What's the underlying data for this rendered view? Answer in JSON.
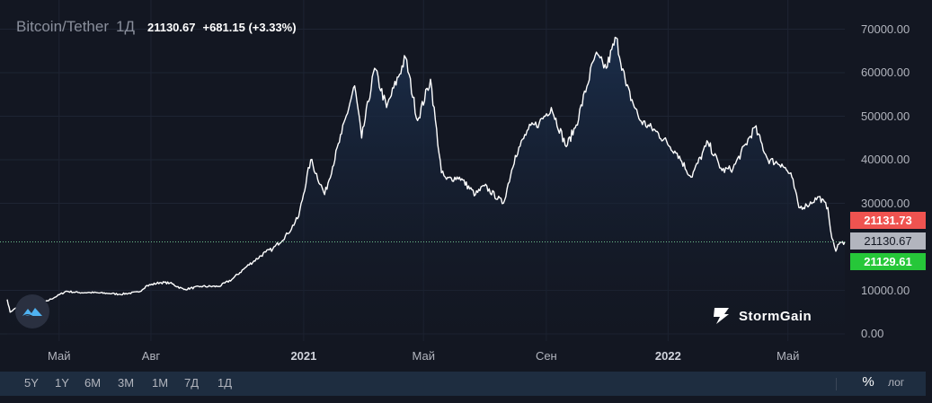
{
  "header": {
    "symbol": "Bitcoin/Tether",
    "interval": "1Д",
    "price": "21130.67",
    "change": "+681.15 (+3.33%)"
  },
  "price_boxes": {
    "ask": "21131.73",
    "last": "21130.67",
    "bid": "21129.61"
  },
  "toolbar": {
    "timeframes": [
      "5Y",
      "1Y",
      "6M",
      "3M",
      "1M",
      "7Д",
      "1Д"
    ],
    "percent_label": "%",
    "log_label": "лог"
  },
  "brand": {
    "name": "StormGain"
  },
  "colors": {
    "background": "#131722",
    "line": "#ffffff",
    "area_top": "#1b2f4d",
    "ask": "#ef5350",
    "bid": "#26c739",
    "last": "#b2b5be"
  },
  "chart_data": {
    "type": "area",
    "title": "Bitcoin/Tether",
    "xlabel": "",
    "ylabel": "",
    "ylim": [
      0,
      70000
    ],
    "y_ticks": [
      "70000.00",
      "60000.00",
      "50000.00",
      "40000.00",
      "30000.00",
      "10000.00",
      "0.00"
    ],
    "y_tick_values": [
      70000,
      60000,
      50000,
      40000,
      30000,
      10000,
      0
    ],
    "x_ticks": [
      {
        "label": "Май",
        "date": "2020-05-01",
        "bold": false
      },
      {
        "label": "Авг",
        "date": "2020-08-01",
        "bold": false
      },
      {
        "label": "2021",
        "date": "2021-01-01",
        "bold": true
      },
      {
        "label": "Май",
        "date": "2021-05-01",
        "bold": false
      },
      {
        "label": "Сен",
        "date": "2021-09-01",
        "bold": false
      },
      {
        "label": "2022",
        "date": "2022-01-01",
        "bold": true
      },
      {
        "label": "Май",
        "date": "2022-05-01",
        "bold": false
      }
    ],
    "xlim": [
      "2020-03-10",
      "2022-06-27"
    ],
    "last_price": 21130.67,
    "series": [
      {
        "x": [
          "2020-03-10",
          "2020-03-13",
          "2020-03-20",
          "2020-04-01",
          "2020-04-15",
          "2020-04-29",
          "2020-05-08",
          "2020-05-20",
          "2020-06-01",
          "2020-06-20",
          "2020-07-01",
          "2020-07-20",
          "2020-07-27",
          "2020-08-10",
          "2020-08-20",
          "2020-09-03",
          "2020-09-20",
          "2020-10-08",
          "2020-10-21",
          "2020-11-05",
          "2020-11-24",
          "2020-12-01",
          "2020-12-16",
          "2020-12-27",
          "2021-01-08",
          "2021-01-22",
          "2021-02-08",
          "2021-02-21",
          "2021-02-28",
          "2021-03-13",
          "2021-03-25",
          "2021-04-13",
          "2021-04-25",
          "2021-05-08",
          "2021-05-19",
          "2021-05-24",
          "2021-06-06",
          "2021-06-22",
          "2021-07-01",
          "2021-07-20",
          "2021-08-01",
          "2021-08-14",
          "2021-08-25",
          "2021-09-06",
          "2021-09-21",
          "2021-10-01",
          "2021-10-20",
          "2021-10-31",
          "2021-11-10",
          "2021-11-20",
          "2021-12-04",
          "2021-12-20",
          "2022-01-10",
          "2022-01-24",
          "2022-02-10",
          "2022-02-24",
          "2022-03-07",
          "2022-03-29",
          "2022-04-11",
          "2022-04-25",
          "2022-05-05",
          "2022-05-12",
          "2022-05-20",
          "2022-06-01",
          "2022-06-10",
          "2022-06-14",
          "2022-06-18",
          "2022-06-20",
          "2022-06-27"
        ],
        "values": [
          7900,
          5000,
          6200,
          6600,
          7100,
          8700,
          9800,
          9500,
          9500,
          9300,
          9100,
          9600,
          11000,
          11800,
          11700,
          10200,
          10900,
          10900,
          12500,
          15500,
          18800,
          19500,
          23000,
          27000,
          40000,
          32000,
          46000,
          57000,
          45000,
          61000,
          52000,
          63500,
          49000,
          58500,
          37000,
          35500,
          36000,
          32000,
          34000,
          30000,
          41000,
          47000,
          48500,
          52000,
          43000,
          48000,
          64000,
          61000,
          68000,
          57000,
          49000,
          46500,
          41500,
          36000,
          44000,
          37500,
          38000,
          47500,
          40000,
          39000,
          36000,
          29000,
          29500,
          31500,
          29000,
          22000,
          19000,
          20500,
          21130
        ]
      }
    ]
  }
}
